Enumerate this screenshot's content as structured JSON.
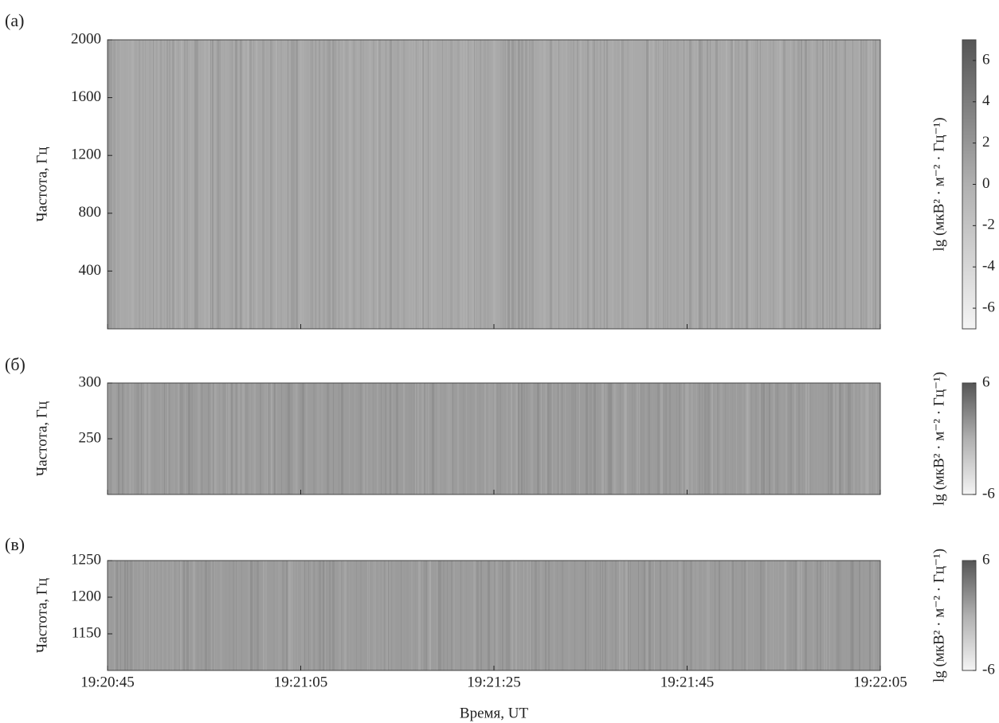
{
  "chart_data": [
    {
      "type": "spectrogram",
      "panel_label": "(а)",
      "ylabel": "Частота, Гц",
      "ylim": [
        0,
        2000
      ],
      "yticks": [
        400,
        800,
        1200,
        1600,
        2000
      ],
      "colorbar_label": "lg (мкВ² · м⁻² · Гц⁻¹)",
      "clim": [
        -7,
        7
      ],
      "cticks": [
        -6,
        -4,
        -2,
        0,
        2,
        4,
        6
      ],
      "xlim": [
        "19:20:45",
        "19:22:05"
      ]
    },
    {
      "type": "spectrogram",
      "panel_label": "(б)",
      "ylabel": "Частота, Гц",
      "ylim": [
        200,
        300
      ],
      "yticks": [
        250,
        300
      ],
      "colorbar_label": "lg (мкВ² · м⁻² · Гц⁻¹)",
      "clim": [
        -6,
        6
      ],
      "cticks": [
        -6,
        6
      ],
      "xlim": [
        "19:20:45",
        "19:22:05"
      ]
    },
    {
      "type": "spectrogram",
      "panel_label": "(в)",
      "ylabel": "Частота, Гц",
      "ylim": [
        1100,
        1250
      ],
      "yticks": [
        1150,
        1200,
        1250
      ],
      "colorbar_label": "lg (мкВ² · м⁻² · Гц⁻¹)",
      "clim": [
        -6,
        6
      ],
      "cticks": [
        -6,
        6
      ],
      "xlim": [
        "19:20:45",
        "19:22:05"
      ],
      "xticks": [
        "19:20:45",
        "19:21:05",
        "19:21:25",
        "19:21:45",
        "19:22:05"
      ],
      "xlabel": "Время, UT"
    }
  ]
}
